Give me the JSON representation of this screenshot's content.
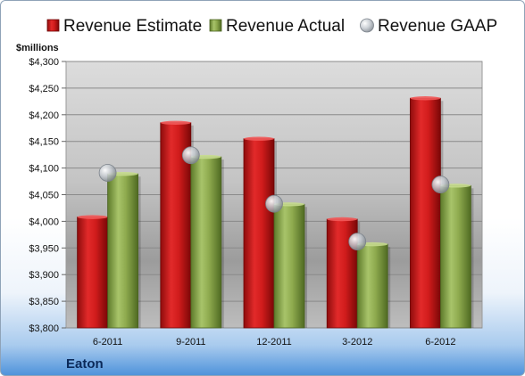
{
  "chart_data": {
    "type": "bar",
    "unit_label": "$millions",
    "footer": "Eaton",
    "categories": [
      "6-2011",
      "9-2011",
      "12-2011",
      "3-2012",
      "6-2012"
    ],
    "series": [
      {
        "name": "Revenue Estimate",
        "kind": "bar",
        "color": "#cc1a1a",
        "values": [
          4008,
          4185,
          4155,
          4004,
          4231
        ]
      },
      {
        "name": "Revenue Actual",
        "kind": "bar",
        "color": "#8aa64a",
        "values": [
          4089,
          4121,
          4032,
          3957,
          4067
        ]
      },
      {
        "name": "Revenue GAAP",
        "kind": "marker",
        "color": "#b8bec6",
        "values": [
          4091,
          4124,
          4033,
          3962,
          4069
        ]
      }
    ],
    "ylim": [
      3800,
      4300
    ],
    "yticks": [
      "$3,800",
      "$3,850",
      "$3,900",
      "$3,950",
      "$4,000",
      "$4,050",
      "$4,100",
      "$4,150",
      "$4,200",
      "$4,250",
      "$4,300"
    ],
    "grid": true,
    "legend_position": "top"
  }
}
